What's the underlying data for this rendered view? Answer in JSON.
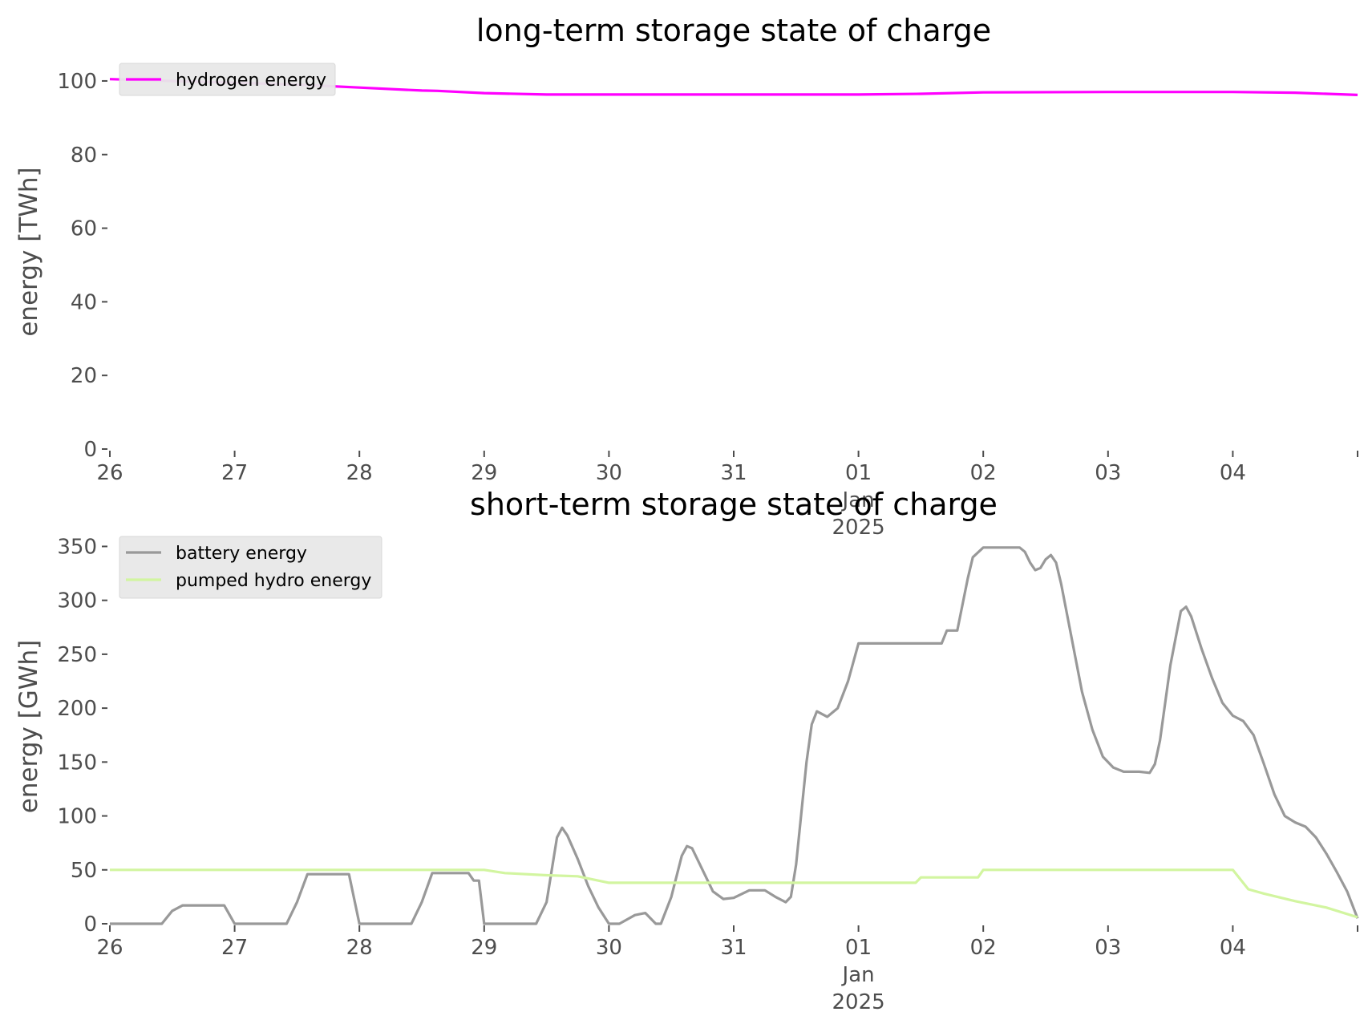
{
  "colors": {
    "hydrogen": "#ff00ff",
    "battery": "#999999",
    "pumped_hydro": "#d2f5a0",
    "legend_bg": "#e8e8e8",
    "axis_text": "#4d4d4d"
  },
  "chart_data": [
    {
      "type": "line",
      "title": "long-term storage state of charge",
      "xlabel": "",
      "ylabel": "energy [TWh]",
      "x_type": "date",
      "xlim": [
        "2024-12-26",
        "2025-01-05"
      ],
      "ylim": [
        0,
        105
      ],
      "yticks": [
        0,
        20,
        40,
        60,
        80,
        100
      ],
      "xticks": [
        {
          "date": "2024-12-26",
          "label": "26"
        },
        {
          "date": "2024-12-27",
          "label": "27"
        },
        {
          "date": "2024-12-28",
          "label": "28"
        },
        {
          "date": "2024-12-29",
          "label": "29"
        },
        {
          "date": "2024-12-30",
          "label": "30"
        },
        {
          "date": "2024-12-31",
          "label": "31"
        },
        {
          "date": "2025-01-01",
          "label": "01\nJan\n2025"
        },
        {
          "date": "2025-01-02",
          "label": "02"
        },
        {
          "date": "2025-01-03",
          "label": "03"
        },
        {
          "date": "2025-01-04",
          "label": "04"
        },
        {
          "date": "2025-01-05",
          "label": ""
        }
      ],
      "grid": false,
      "legend": "top-left",
      "series": [
        {
          "name": "hydrogen energy",
          "color": "#ff00ff",
          "points": [
            [
              "2024-12-26 00:00",
              100.5
            ],
            [
              "2024-12-26 12:00",
              100.0
            ],
            [
              "2024-12-27 00:00",
              99.5
            ],
            [
              "2024-12-27 12:00",
              99.0
            ],
            [
              "2024-12-28 00:00",
              98.2
            ],
            [
              "2024-12-28 12:00",
              97.4
            ],
            [
              "2024-12-28 15:00",
              97.3
            ],
            [
              "2024-12-29 00:00",
              96.7
            ],
            [
              "2024-12-29 12:00",
              96.3
            ],
            [
              "2024-12-30 00:00",
              96.3
            ],
            [
              "2024-12-31 00:00",
              96.3
            ],
            [
              "2025-01-01 00:00",
              96.3
            ],
            [
              "2025-01-01 12:00",
              96.5
            ],
            [
              "2025-01-02 00:00",
              96.9
            ],
            [
              "2025-01-03 00:00",
              97.0
            ],
            [
              "2025-01-04 00:00",
              97.0
            ],
            [
              "2025-01-04 12:00",
              96.8
            ],
            [
              "2025-01-05 00:00",
              96.2
            ]
          ]
        }
      ]
    },
    {
      "type": "line",
      "title": "short-term storage state of charge",
      "xlabel": "",
      "ylabel": "energy [GWh]",
      "x_type": "date",
      "xlim": [
        "2024-12-26",
        "2025-01-05"
      ],
      "ylim": [
        0,
        360
      ],
      "yticks": [
        0,
        50,
        100,
        150,
        200,
        250,
        300,
        350
      ],
      "xticks": [
        {
          "date": "2024-12-26",
          "label": "26"
        },
        {
          "date": "2024-12-27",
          "label": "27"
        },
        {
          "date": "2024-12-28",
          "label": "28"
        },
        {
          "date": "2024-12-29",
          "label": "29"
        },
        {
          "date": "2024-12-30",
          "label": "30"
        },
        {
          "date": "2024-12-31",
          "label": "31"
        },
        {
          "date": "2025-01-01",
          "label": "01\nJan\n2025"
        },
        {
          "date": "2025-01-02",
          "label": "02"
        },
        {
          "date": "2025-01-03",
          "label": "03"
        },
        {
          "date": "2025-01-04",
          "label": "04"
        },
        {
          "date": "2025-01-05",
          "label": ""
        }
      ],
      "grid": false,
      "legend": "top-left",
      "series": [
        {
          "name": "battery energy",
          "color": "#999999",
          "points": [
            [
              "2024-12-26 00:00",
              0
            ],
            [
              "2024-12-26 10:00",
              0
            ],
            [
              "2024-12-26 12:00",
              12
            ],
            [
              "2024-12-26 14:00",
              17
            ],
            [
              "2024-12-26 22:00",
              17
            ],
            [
              "2024-12-27 00:00",
              0
            ],
            [
              "2024-12-27 10:00",
              0
            ],
            [
              "2024-12-27 12:00",
              20
            ],
            [
              "2024-12-27 14:00",
              46
            ],
            [
              "2024-12-27 22:00",
              46
            ],
            [
              "2024-12-28 00:00",
              0
            ],
            [
              "2024-12-28 10:00",
              0
            ],
            [
              "2024-12-28 12:00",
              20
            ],
            [
              "2024-12-28 14:00",
              47
            ],
            [
              "2024-12-28 21:00",
              47
            ],
            [
              "2024-12-28 22:00",
              40
            ],
            [
              "2024-12-28 23:00",
              40
            ],
            [
              "2024-12-29 00:00",
              0
            ],
            [
              "2024-12-29 10:00",
              0
            ],
            [
              "2024-12-29 12:00",
              20
            ],
            [
              "2024-12-29 14:00",
              80
            ],
            [
              "2024-12-29 15:00",
              89
            ],
            [
              "2024-12-29 16:00",
              82
            ],
            [
              "2024-12-29 18:00",
              60
            ],
            [
              "2024-12-29 20:00",
              35
            ],
            [
              "2024-12-29 22:00",
              15
            ],
            [
              "2024-12-30 00:00",
              0
            ],
            [
              "2024-12-30 02:00",
              0
            ],
            [
              "2024-12-30 05:00",
              8
            ],
            [
              "2024-12-30 07:00",
              10
            ],
            [
              "2024-12-30 09:00",
              0
            ],
            [
              "2024-12-30 10:00",
              0
            ],
            [
              "2024-12-30 12:00",
              25
            ],
            [
              "2024-12-30 14:00",
              63
            ],
            [
              "2024-12-30 15:00",
              72
            ],
            [
              "2024-12-30 16:00",
              70
            ],
            [
              "2024-12-30 18:00",
              50
            ],
            [
              "2024-12-30 20:00",
              30
            ],
            [
              "2024-12-30 22:00",
              23
            ],
            [
              "2024-12-31 00:00",
              24
            ],
            [
              "2024-12-31 03:00",
              31
            ],
            [
              "2024-12-31 06:00",
              31
            ],
            [
              "2024-12-31 08:00",
              25
            ],
            [
              "2024-12-31 10:00",
              20
            ],
            [
              "2024-12-31 11:00",
              25
            ],
            [
              "2024-12-31 12:00",
              55
            ],
            [
              "2024-12-31 14:00",
              150
            ],
            [
              "2024-12-31 15:00",
              185
            ],
            [
              "2024-12-31 16:00",
              197
            ],
            [
              "2024-12-31 18:00",
              192
            ],
            [
              "2024-12-31 20:00",
              200
            ],
            [
              "2024-12-31 22:00",
              225
            ],
            [
              "2025-01-01 00:00",
              260
            ],
            [
              "2025-01-01 16:00",
              260
            ],
            [
              "2025-01-01 17:00",
              272
            ],
            [
              "2025-01-01 19:00",
              272
            ],
            [
              "2025-01-01 21:00",
              320
            ],
            [
              "2025-01-01 22:00",
              340
            ],
            [
              "2025-01-02 00:00",
              349
            ],
            [
              "2025-01-02 07:00",
              349
            ],
            [
              "2025-01-02 08:00",
              345
            ],
            [
              "2025-01-02 09:00",
              335
            ],
            [
              "2025-01-02 10:00",
              328
            ],
            [
              "2025-01-02 11:00",
              330
            ],
            [
              "2025-01-02 12:00",
              338
            ],
            [
              "2025-01-02 13:00",
              342
            ],
            [
              "2025-01-02 14:00",
              335
            ],
            [
              "2025-01-02 15:00",
              315
            ],
            [
              "2025-01-02 17:00",
              265
            ],
            [
              "2025-01-02 19:00",
              215
            ],
            [
              "2025-01-02 21:00",
              180
            ],
            [
              "2025-01-02 23:00",
              155
            ],
            [
              "2025-01-03 01:00",
              145
            ],
            [
              "2025-01-03 03:00",
              141
            ],
            [
              "2025-01-03 06:00",
              141
            ],
            [
              "2025-01-03 08:00",
              140
            ],
            [
              "2025-01-03 09:00",
              148
            ],
            [
              "2025-01-03 10:00",
              170
            ],
            [
              "2025-01-03 12:00",
              240
            ],
            [
              "2025-01-03 14:00",
              290
            ],
            [
              "2025-01-03 15:00",
              294
            ],
            [
              "2025-01-03 16:00",
              285
            ],
            [
              "2025-01-03 18:00",
              255
            ],
            [
              "2025-01-03 20:00",
              228
            ],
            [
              "2025-01-03 22:00",
              205
            ],
            [
              "2025-01-04 00:00",
              193
            ],
            [
              "2025-01-04 02:00",
              188
            ],
            [
              "2025-01-04 04:00",
              175
            ],
            [
              "2025-01-04 06:00",
              148
            ],
            [
              "2025-01-04 08:00",
              120
            ],
            [
              "2025-01-04 10:00",
              100
            ],
            [
              "2025-01-04 12:00",
              94
            ],
            [
              "2025-01-04 14:00",
              90
            ],
            [
              "2025-01-04 16:00",
              80
            ],
            [
              "2025-01-04 18:00",
              65
            ],
            [
              "2025-01-04 20:00",
              48
            ],
            [
              "2025-01-04 22:00",
              30
            ],
            [
              "2025-01-05 00:00",
              5
            ]
          ]
        },
        {
          "name": "pumped hydro energy",
          "color": "#d2f5a0",
          "points": [
            [
              "2024-12-26 00:00",
              50
            ],
            [
              "2024-12-29 00:00",
              50
            ],
            [
              "2024-12-29 04:00",
              47
            ],
            [
              "2024-12-29 12:00",
              45
            ],
            [
              "2024-12-29 18:00",
              44
            ],
            [
              "2024-12-30 00:00",
              38
            ],
            [
              "2024-12-30 12:00",
              38
            ],
            [
              "2025-01-01 00:00",
              38
            ],
            [
              "2025-01-01 11:00",
              38
            ],
            [
              "2025-01-01 12:00",
              43
            ],
            [
              "2025-01-01 23:00",
              43
            ],
            [
              "2025-01-02 00:00",
              50
            ],
            [
              "2025-01-04 00:00",
              50
            ],
            [
              "2025-01-04 03:00",
              32
            ],
            [
              "2025-01-04 06:00",
              28
            ],
            [
              "2025-01-04 12:00",
              21
            ],
            [
              "2025-01-04 18:00",
              15
            ],
            [
              "2025-01-05 00:00",
              6
            ]
          ]
        }
      ]
    }
  ]
}
